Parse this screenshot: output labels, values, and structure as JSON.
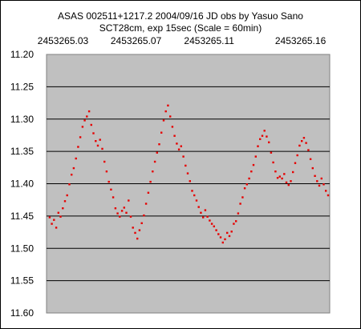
{
  "chart_data": {
    "type": "scatter",
    "title": "ASAS 002511+1217.2   2004/09/16   JD  obs by Yasuo Sano",
    "subtitle": "SCT28cm, exp 15sec (Scale = 60min)",
    "xlabel": "",
    "ylabel": "",
    "x_tick_labels": [
      "2453265.03",
      "2453265.07",
      "2453265.11",
      "2453265.16"
    ],
    "x_tick_values": [
      2453265.03,
      2453265.07,
      2453265.11,
      2453265.16
    ],
    "xlim": [
      2453265.021,
      2453265.176
    ],
    "ylim": [
      11.2,
      11.6
    ],
    "y_inverted": true,
    "y_tick_labels": [
      "11.20",
      "11.25",
      "11.30",
      "11.35",
      "11.40",
      "11.45",
      "11.50",
      "11.55",
      "11.60"
    ],
    "grid": true,
    "marker_color": "#e60000",
    "plot_background": "#c0c0c0",
    "series": [
      {
        "points": [
          [
            2453265.0227,
            11.452
          ],
          [
            2453265.0239,
            11.462
          ],
          [
            2453265.0251,
            11.456
          ],
          [
            2453265.0263,
            11.468
          ],
          [
            2453265.0275,
            11.445
          ],
          [
            2453265.0287,
            11.451
          ],
          [
            2453265.0299,
            11.438
          ],
          [
            2453265.0311,
            11.427
          ],
          [
            2453265.0323,
            11.418
          ],
          [
            2453265.0335,
            11.401
          ],
          [
            2453265.0347,
            11.386
          ],
          [
            2453265.0359,
            11.376
          ],
          [
            2453265.0371,
            11.361
          ],
          [
            2453265.0383,
            11.343
          ],
          [
            2453265.0395,
            11.328
          ],
          [
            2453265.0407,
            11.312
          ],
          [
            2453265.0419,
            11.302
          ],
          [
            2453265.0431,
            11.296
          ],
          [
            2453265.0443,
            11.288
          ],
          [
            2453265.0455,
            11.309
          ],
          [
            2453265.0467,
            11.322
          ],
          [
            2453265.0479,
            11.334
          ],
          [
            2453265.0491,
            11.341
          ],
          [
            2453265.0503,
            11.332
          ],
          [
            2453265.0515,
            11.346
          ],
          [
            2453265.0527,
            11.366
          ],
          [
            2453265.0539,
            11.381
          ],
          [
            2453265.0551,
            11.397
          ],
          [
            2453265.0563,
            11.409
          ],
          [
            2453265.0575,
            11.421
          ],
          [
            2453265.0587,
            11.438
          ],
          [
            2453265.0599,
            11.446
          ],
          [
            2453265.0611,
            11.451
          ],
          [
            2453265.0623,
            11.442
          ],
          [
            2453265.0635,
            11.437
          ],
          [
            2453265.0647,
            11.445
          ],
          [
            2453265.0659,
            11.426
          ],
          [
            2453265.0671,
            11.451
          ],
          [
            2453265.0683,
            11.468
          ],
          [
            2453265.0695,
            11.476
          ],
          [
            2453265.0707,
            11.485
          ],
          [
            2453265.0719,
            11.472
          ],
          [
            2453265.0731,
            11.461
          ],
          [
            2453265.0743,
            11.449
          ],
          [
            2453265.0755,
            11.431
          ],
          [
            2453265.0767,
            11.414
          ],
          [
            2453265.0779,
            11.397
          ],
          [
            2453265.0791,
            11.381
          ],
          [
            2453265.0803,
            11.366
          ],
          [
            2453265.0815,
            11.352
          ],
          [
            2453265.0827,
            11.339
          ],
          [
            2453265.0839,
            11.321
          ],
          [
            2453265.0851,
            11.302
          ],
          [
            2453265.0863,
            11.288
          ],
          [
            2453265.0875,
            11.279
          ],
          [
            2453265.0887,
            11.296
          ],
          [
            2453265.0899,
            11.312
          ],
          [
            2453265.0911,
            11.326
          ],
          [
            2453265.0923,
            11.338
          ],
          [
            2453265.0935,
            11.347
          ],
          [
            2453265.0947,
            11.342
          ],
          [
            2453265.0959,
            11.358
          ],
          [
            2453265.0971,
            11.372
          ],
          [
            2453265.0983,
            11.384
          ],
          [
            2453265.0995,
            11.396
          ],
          [
            2453265.1007,
            11.411
          ],
          [
            2453265.1019,
            11.418
          ],
          [
            2453265.1031,
            11.426
          ],
          [
            2453265.1043,
            11.436
          ],
          [
            2453265.1055,
            11.445
          ],
          [
            2453265.1067,
            11.452
          ],
          [
            2453265.1079,
            11.441
          ],
          [
            2453265.1091,
            11.451
          ],
          [
            2453265.1103,
            11.457
          ],
          [
            2453265.1115,
            11.462
          ],
          [
            2453265.1127,
            11.466
          ],
          [
            2453265.1139,
            11.472
          ],
          [
            2453265.1151,
            11.478
          ],
          [
            2453265.1163,
            11.483
          ],
          [
            2453265.1175,
            11.491
          ],
          [
            2453265.1187,
            11.486
          ],
          [
            2453265.1199,
            11.476
          ],
          [
            2453265.1211,
            11.481
          ],
          [
            2453265.1223,
            11.474
          ],
          [
            2453265.1235,
            11.462
          ],
          [
            2453265.1247,
            11.458
          ],
          [
            2453265.1259,
            11.446
          ],
          [
            2453265.1271,
            11.431
          ],
          [
            2453265.1283,
            11.421
          ],
          [
            2453265.1295,
            11.407
          ],
          [
            2453265.1307,
            11.401
          ],
          [
            2453265.1319,
            11.392
          ],
          [
            2453265.1331,
            11.381
          ],
          [
            2453265.1343,
            11.371
          ],
          [
            2453265.1355,
            11.358
          ],
          [
            2453265.1367,
            11.342
          ],
          [
            2453265.1379,
            11.331
          ],
          [
            2453265.1391,
            11.326
          ],
          [
            2453265.1403,
            11.318
          ],
          [
            2453265.1415,
            11.327
          ],
          [
            2453265.1427,
            11.336
          ],
          [
            2453265.1439,
            11.352
          ],
          [
            2453265.1451,
            11.367
          ],
          [
            2453265.1463,
            11.381
          ],
          [
            2453265.1475,
            11.391
          ],
          [
            2453265.1487,
            11.389
          ],
          [
            2453265.1499,
            11.392
          ],
          [
            2453265.1511,
            11.385
          ],
          [
            2453265.1523,
            11.398
          ],
          [
            2453265.1535,
            11.402
          ],
          [
            2453265.1547,
            11.396
          ],
          [
            2453265.1559,
            11.382
          ],
          [
            2453265.1571,
            11.368
          ],
          [
            2453265.1583,
            11.356
          ],
          [
            2453265.1595,
            11.341
          ],
          [
            2453265.1607,
            11.334
          ],
          [
            2453265.1619,
            11.329
          ],
          [
            2453265.1631,
            11.337
          ],
          [
            2453265.1643,
            11.348
          ],
          [
            2453265.1655,
            11.362
          ],
          [
            2453265.1667,
            11.376
          ],
          [
            2453265.1679,
            11.388
          ],
          [
            2453265.1691,
            11.396
          ],
          [
            2453265.1703,
            11.403
          ],
          [
            2453265.1715,
            11.392
          ],
          [
            2453265.1727,
            11.401
          ],
          [
            2453265.1739,
            11.411
          ],
          [
            2453265.1751,
            11.418
          ]
        ]
      }
    ]
  }
}
